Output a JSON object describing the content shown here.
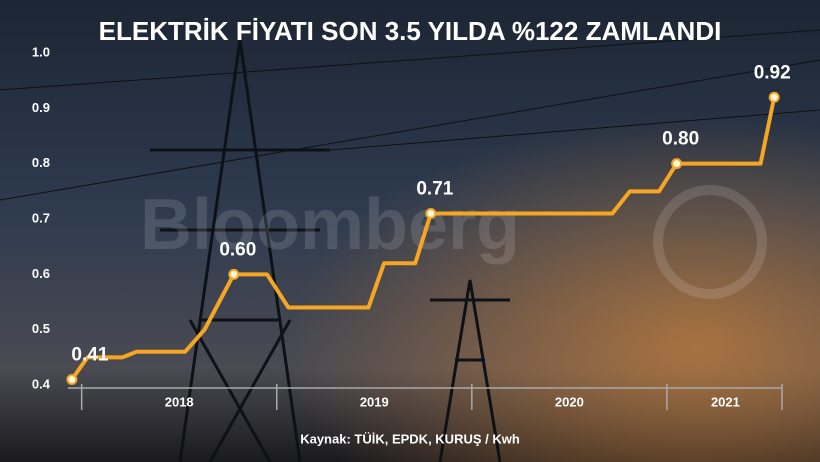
{
  "chart_data": {
    "type": "line",
    "title": "ELEKTRİK FİYATI SON 3.5 YILDA %122 ZAMLANDI",
    "source": "Kaynak: TÜİK, EPDK, KURUŞ / Kwh",
    "watermark": "Bloomberg",
    "x": [
      2017.95,
      2018.03,
      2018.21,
      2018.28,
      2018.53,
      2018.63,
      2018.78,
      2018.95,
      2019.06,
      2019.47,
      2019.55,
      2019.71,
      2019.79,
      2020.72,
      2020.81,
      2020.96,
      2021.05,
      2021.48,
      2021.55
    ],
    "values": [
      0.41,
      0.45,
      0.45,
      0.46,
      0.46,
      0.5,
      0.6,
      0.6,
      0.54,
      0.54,
      0.62,
      0.62,
      0.71,
      0.71,
      0.75,
      0.75,
      0.8,
      0.8,
      0.92
    ],
    "value_labels": [
      "0.41",
      null,
      null,
      null,
      null,
      null,
      "0.60",
      null,
      null,
      null,
      null,
      null,
      "0.71",
      null,
      null,
      null,
      "0.80",
      null,
      "0.92"
    ],
    "color": "#f5a623",
    "xlim": [
      2017.93,
      2021.59
    ],
    "xticks": [
      {
        "value": 2018.5,
        "label": "2018"
      },
      {
        "value": 2019.5,
        "label": "2019"
      },
      {
        "value": 2020.5,
        "label": "2020"
      },
      {
        "value": 2021.3,
        "label": "2021"
      }
    ],
    "ylim": [
      0.4,
      1
    ],
    "yticks": [
      0.4,
      0.5,
      0.6,
      0.7,
      0.8,
      0.9,
      {
        "value": 1,
        "label": "1.0"
      }
    ],
    "grid": false
  }
}
